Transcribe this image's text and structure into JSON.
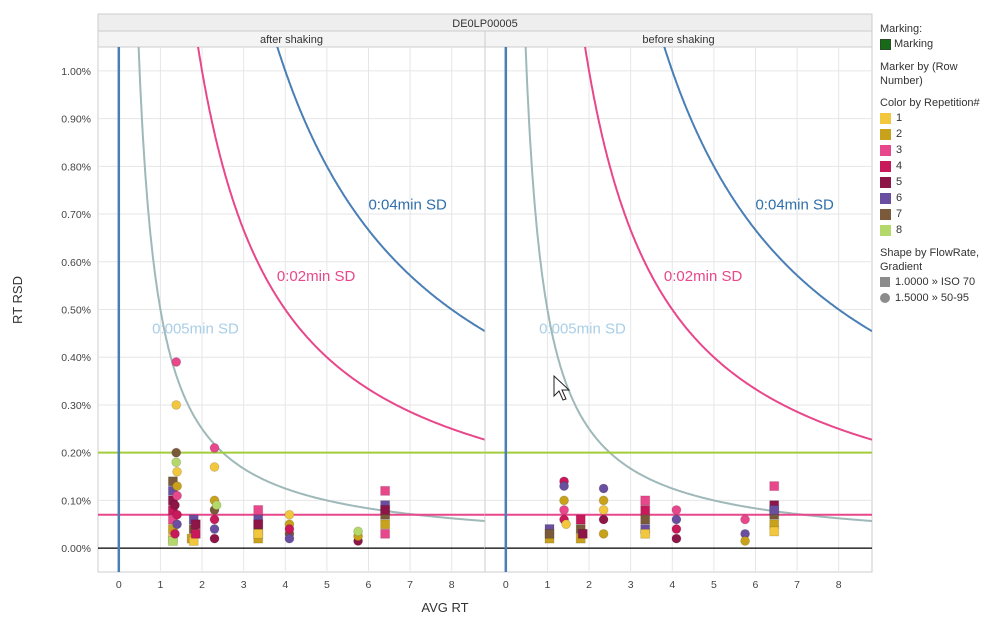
{
  "chart_data": {
    "type": "scatter",
    "title": "DE0LP00005",
    "xlabel": "AVG RT",
    "ylabel": "RT RSD",
    "xlim": [
      -0.5,
      8.8
    ],
    "ylim": [
      -0.05,
      1.05
    ],
    "x_ticks": [
      0,
      1,
      2,
      3,
      4,
      5,
      6,
      7,
      8
    ],
    "y_ticks": [
      0.0,
      0.1,
      0.2,
      0.3,
      0.4,
      0.5,
      0.6,
      0.7,
      0.8,
      0.9,
      1.0
    ],
    "y_tick_labels": [
      "0.00%",
      "0.10%",
      "0.20%",
      "0.30%",
      "0.40%",
      "0.50%",
      "0.60%",
      "0.70%",
      "0.80%",
      "0.90%",
      "1.00%"
    ],
    "grid": true,
    "reference_lines": {
      "vertical_x": 0,
      "horizontal": [
        {
          "y": 0.2,
          "color": "#a3cc3a"
        },
        {
          "y": 0.07,
          "color": "#e8478b"
        },
        {
          "y": 0.0,
          "color": "#000000"
        }
      ]
    },
    "curves": [
      {
        "label": "0:005min SD",
        "sd": 0.005,
        "color": "#9fb8b8",
        "label_color": "#a9cfe8"
      },
      {
        "label": "0:02min SD",
        "sd": 0.02,
        "color": "#e8478b",
        "label_color": "#e8478b"
      },
      {
        "label": "0:04min SD",
        "sd": 0.04,
        "color": "#4a7fb5",
        "label_color": "#2f6fab"
      }
    ],
    "panels": [
      {
        "label": "after shaking",
        "label_positions": [
          [
            0.8,
            0.45
          ],
          [
            3.8,
            0.56
          ],
          [
            6.0,
            0.71
          ]
        ],
        "points": [
          [
            1.3,
            0.02,
            "sq",
            "#f2c73d"
          ],
          [
            1.3,
            0.04,
            "sq",
            "#c9a21b"
          ],
          [
            1.3,
            0.06,
            "sq",
            "#e8478b"
          ],
          [
            1.3,
            0.08,
            "sq",
            "#c8195a"
          ],
          [
            1.3,
            0.1,
            "sq",
            "#8e1548"
          ],
          [
            1.3,
            0.12,
            "sq",
            "#6a4fa0"
          ],
          [
            1.3,
            0.14,
            "sq",
            "#7a5a3a"
          ],
          [
            1.3,
            0.015,
            "sq",
            "#b5d86a"
          ],
          [
            1.35,
            0.03,
            "ci",
            "#c8195a"
          ],
          [
            1.35,
            0.09,
            "ci",
            "#8e1548"
          ],
          [
            1.38,
            0.39,
            "ci",
            "#e8478b"
          ],
          [
            1.38,
            0.3,
            "ci",
            "#f2c73d"
          ],
          [
            1.38,
            0.2,
            "ci",
            "#7a5a3a"
          ],
          [
            1.38,
            0.18,
            "ci",
            "#b5d86a"
          ],
          [
            1.4,
            0.16,
            "ci",
            "#f2c73d"
          ],
          [
            1.4,
            0.13,
            "ci",
            "#c9a21b"
          ],
          [
            1.4,
            0.11,
            "ci",
            "#e8478b"
          ],
          [
            1.4,
            0.07,
            "ci",
            "#c8195a"
          ],
          [
            1.4,
            0.05,
            "ci",
            "#6a4fa0"
          ],
          [
            1.75,
            0.02,
            "sq",
            "#c9a21b"
          ],
          [
            1.8,
            0.04,
            "sq",
            "#7a5a3a"
          ],
          [
            1.8,
            0.06,
            "sq",
            "#6a4fa0"
          ],
          [
            1.8,
            0.015,
            "sq",
            "#f2c73d"
          ],
          [
            1.85,
            0.03,
            "sq",
            "#c8195a"
          ],
          [
            1.85,
            0.05,
            "sq",
            "#8e1548"
          ],
          [
            2.3,
            0.21,
            "ci",
            "#e8478b"
          ],
          [
            2.3,
            0.17,
            "ci",
            "#f2c73d"
          ],
          [
            2.3,
            0.1,
            "ci",
            "#c9a21b"
          ],
          [
            2.3,
            0.08,
            "ci",
            "#7a5a3a"
          ],
          [
            2.3,
            0.06,
            "ci",
            "#c8195a"
          ],
          [
            2.3,
            0.04,
            "ci",
            "#6a4fa0"
          ],
          [
            2.3,
            0.02,
            "ci",
            "#8e1548"
          ],
          [
            2.35,
            0.09,
            "ci",
            "#b5d86a"
          ],
          [
            3.35,
            0.02,
            "sq",
            "#c9a21b"
          ],
          [
            3.35,
            0.04,
            "sq",
            "#7a5a3a"
          ],
          [
            3.35,
            0.06,
            "sq",
            "#6a4fa0"
          ],
          [
            3.35,
            0.08,
            "sq",
            "#e8478b"
          ],
          [
            3.35,
            0.05,
            "sq",
            "#8e1548"
          ],
          [
            3.35,
            0.03,
            "sq",
            "#f2c73d"
          ],
          [
            4.1,
            0.07,
            "ci",
            "#f2c73d"
          ],
          [
            4.1,
            0.05,
            "ci",
            "#c9a21b"
          ],
          [
            4.1,
            0.03,
            "ci",
            "#7a5a3a"
          ],
          [
            4.1,
            0.02,
            "ci",
            "#6a4fa0"
          ],
          [
            4.1,
            0.04,
            "ci",
            "#c8195a"
          ],
          [
            5.75,
            0.015,
            "ci",
            "#8e1548"
          ],
          [
            5.75,
            0.025,
            "ci",
            "#c9a21b"
          ],
          [
            5.75,
            0.035,
            "ci",
            "#b5d86a"
          ],
          [
            6.4,
            0.12,
            "sq",
            "#e8478b"
          ],
          [
            6.4,
            0.09,
            "sq",
            "#6a4fa0"
          ],
          [
            6.4,
            0.07,
            "sq",
            "#7a5a3a"
          ],
          [
            6.4,
            0.05,
            "sq",
            "#c9a21b"
          ],
          [
            6.4,
            0.03,
            "sq",
            "#e8478b"
          ],
          [
            6.4,
            0.08,
            "sq",
            "#8e1548"
          ]
        ]
      },
      {
        "label": "before shaking",
        "label_positions": [
          [
            0.8,
            0.45
          ],
          [
            3.8,
            0.56
          ],
          [
            6.0,
            0.71
          ]
        ],
        "points": [
          [
            1.05,
            0.02,
            "sq",
            "#c9a21b"
          ],
          [
            1.05,
            0.04,
            "sq",
            "#6a4fa0"
          ],
          [
            1.05,
            0.03,
            "sq",
            "#7a5a3a"
          ],
          [
            1.4,
            0.14,
            "ci",
            "#c8195a"
          ],
          [
            1.4,
            0.13,
            "ci",
            "#6a4fa0"
          ],
          [
            1.4,
            0.1,
            "ci",
            "#c9a21b"
          ],
          [
            1.4,
            0.08,
            "ci",
            "#e8478b"
          ],
          [
            1.4,
            0.06,
            "ci",
            "#c8195a"
          ],
          [
            1.45,
            0.05,
            "ci",
            "#f2c73d"
          ],
          [
            1.8,
            0.02,
            "sq",
            "#c9a21b"
          ],
          [
            1.8,
            0.04,
            "sq",
            "#7a5a3a"
          ],
          [
            1.8,
            0.06,
            "sq",
            "#c8195a"
          ],
          [
            1.85,
            0.03,
            "sq",
            "#8e1548"
          ],
          [
            2.35,
            0.125,
            "ci",
            "#6a4fa0"
          ],
          [
            2.35,
            0.1,
            "ci",
            "#c9a21b"
          ],
          [
            2.35,
            0.08,
            "ci",
            "#f2c73d"
          ],
          [
            2.35,
            0.06,
            "ci",
            "#8e1548"
          ],
          [
            2.35,
            0.03,
            "ci",
            "#c9a21b"
          ],
          [
            3.35,
            0.1,
            "sq",
            "#e8478b"
          ],
          [
            3.35,
            0.08,
            "sq",
            "#c8195a"
          ],
          [
            3.35,
            0.06,
            "sq",
            "#7a5a3a"
          ],
          [
            3.35,
            0.04,
            "sq",
            "#6a4fa0"
          ],
          [
            3.35,
            0.03,
            "sq",
            "#f2c73d"
          ],
          [
            4.1,
            0.08,
            "ci",
            "#e8478b"
          ],
          [
            4.1,
            0.06,
            "ci",
            "#6a4fa0"
          ],
          [
            4.1,
            0.04,
            "ci",
            "#c8195a"
          ],
          [
            4.1,
            0.02,
            "ci",
            "#8e1548"
          ],
          [
            5.75,
            0.06,
            "ci",
            "#e8478b"
          ],
          [
            5.75,
            0.03,
            "ci",
            "#6a4fa0"
          ],
          [
            5.75,
            0.015,
            "ci",
            "#c9a21b"
          ],
          [
            6.45,
            0.13,
            "sq",
            "#e8478b"
          ],
          [
            6.45,
            0.09,
            "sq",
            "#8e1548"
          ],
          [
            6.45,
            0.07,
            "sq",
            "#7a5a3a"
          ],
          [
            6.45,
            0.05,
            "sq",
            "#c9a21b"
          ],
          [
            6.45,
            0.035,
            "sq",
            "#f2c73d"
          ],
          [
            6.45,
            0.08,
            "sq",
            "#6a4fa0"
          ]
        ]
      }
    ]
  },
  "legend": {
    "marking_title": "Marking:",
    "marking_item": "Marking",
    "marker_title": "Marker by (Row Number)",
    "color_title": "Color by Repetition#",
    "color_items": [
      {
        "label": "1",
        "color": "#f2c73d"
      },
      {
        "label": "2",
        "color": "#c9a21b"
      },
      {
        "label": "3",
        "color": "#e8478b"
      },
      {
        "label": "4",
        "color": "#c8195a"
      },
      {
        "label": "5",
        "color": "#8e1548"
      },
      {
        "label": "6",
        "color": "#6a4fa0"
      },
      {
        "label": "7",
        "color": "#7a5a3a"
      },
      {
        "label": "8",
        "color": "#b5d86a"
      }
    ],
    "shape_title": "Shape by FlowRate, Gradient",
    "shape_items": [
      {
        "label": "1.0000 » ISO 70",
        "shape": "square"
      },
      {
        "label": "1.5000 » 50-95",
        "shape": "circle"
      }
    ]
  }
}
